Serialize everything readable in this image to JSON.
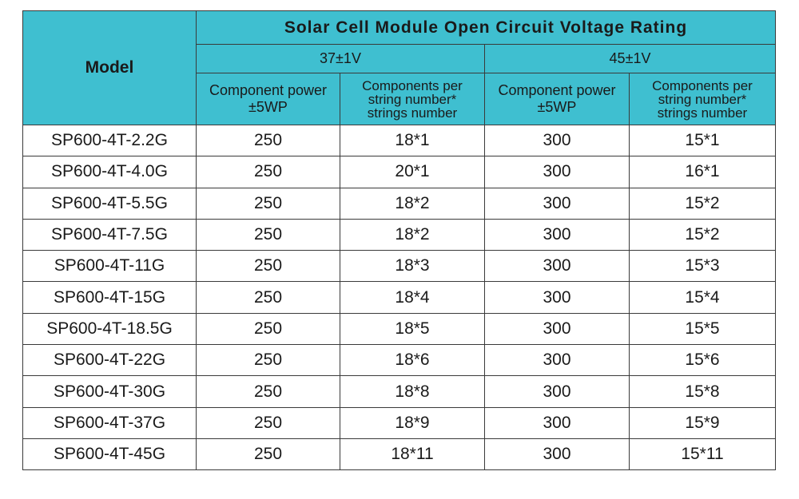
{
  "table": {
    "title": "Solar Cell Module Open Circuit Voltage Rating",
    "model_header": "Model",
    "voltage_groups": [
      "37±1V",
      "45±1V"
    ],
    "sub_headers": [
      {
        "line1": "Component power",
        "line2": "±5WP"
      },
      {
        "line1": "Components per",
        "line2": "string number*",
        "line3": "strings number"
      },
      {
        "line1": "Component power",
        "line2": "±5WP"
      },
      {
        "line1": "Components per",
        "line2": "string number*",
        "line3": "strings number"
      }
    ],
    "rows": [
      [
        "SP600-4T-2.2G",
        "250",
        "18*1",
        "300",
        "15*1"
      ],
      [
        "SP600-4T-4.0G",
        "250",
        "20*1",
        "300",
        "16*1"
      ],
      [
        "SP600-4T-5.5G",
        "250",
        "18*2",
        "300",
        "15*2"
      ],
      [
        "SP600-4T-7.5G",
        "250",
        "18*2",
        "300",
        "15*2"
      ],
      [
        "SP600-4T-11G",
        "250",
        "18*3",
        "300",
        "15*3"
      ],
      [
        "SP600-4T-15G",
        "250",
        "18*4",
        "300",
        "15*4"
      ],
      [
        "SP600-4T-18.5G",
        "250",
        "18*5",
        "300",
        "15*5"
      ],
      [
        "SP600-4T-22G",
        "250",
        "18*6",
        "300",
        "15*6"
      ],
      [
        "SP600-4T-30G",
        "250",
        "18*8",
        "300",
        "15*8"
      ],
      [
        "SP600-4T-37G",
        "250",
        "18*9",
        "300",
        "15*9"
      ],
      [
        "SP600-4T-45G",
        "250",
        "18*11",
        "300",
        "15*11"
      ]
    ]
  },
  "colors": {
    "header_bg": "#3fbfd0",
    "border": "#3a3a3a"
  }
}
